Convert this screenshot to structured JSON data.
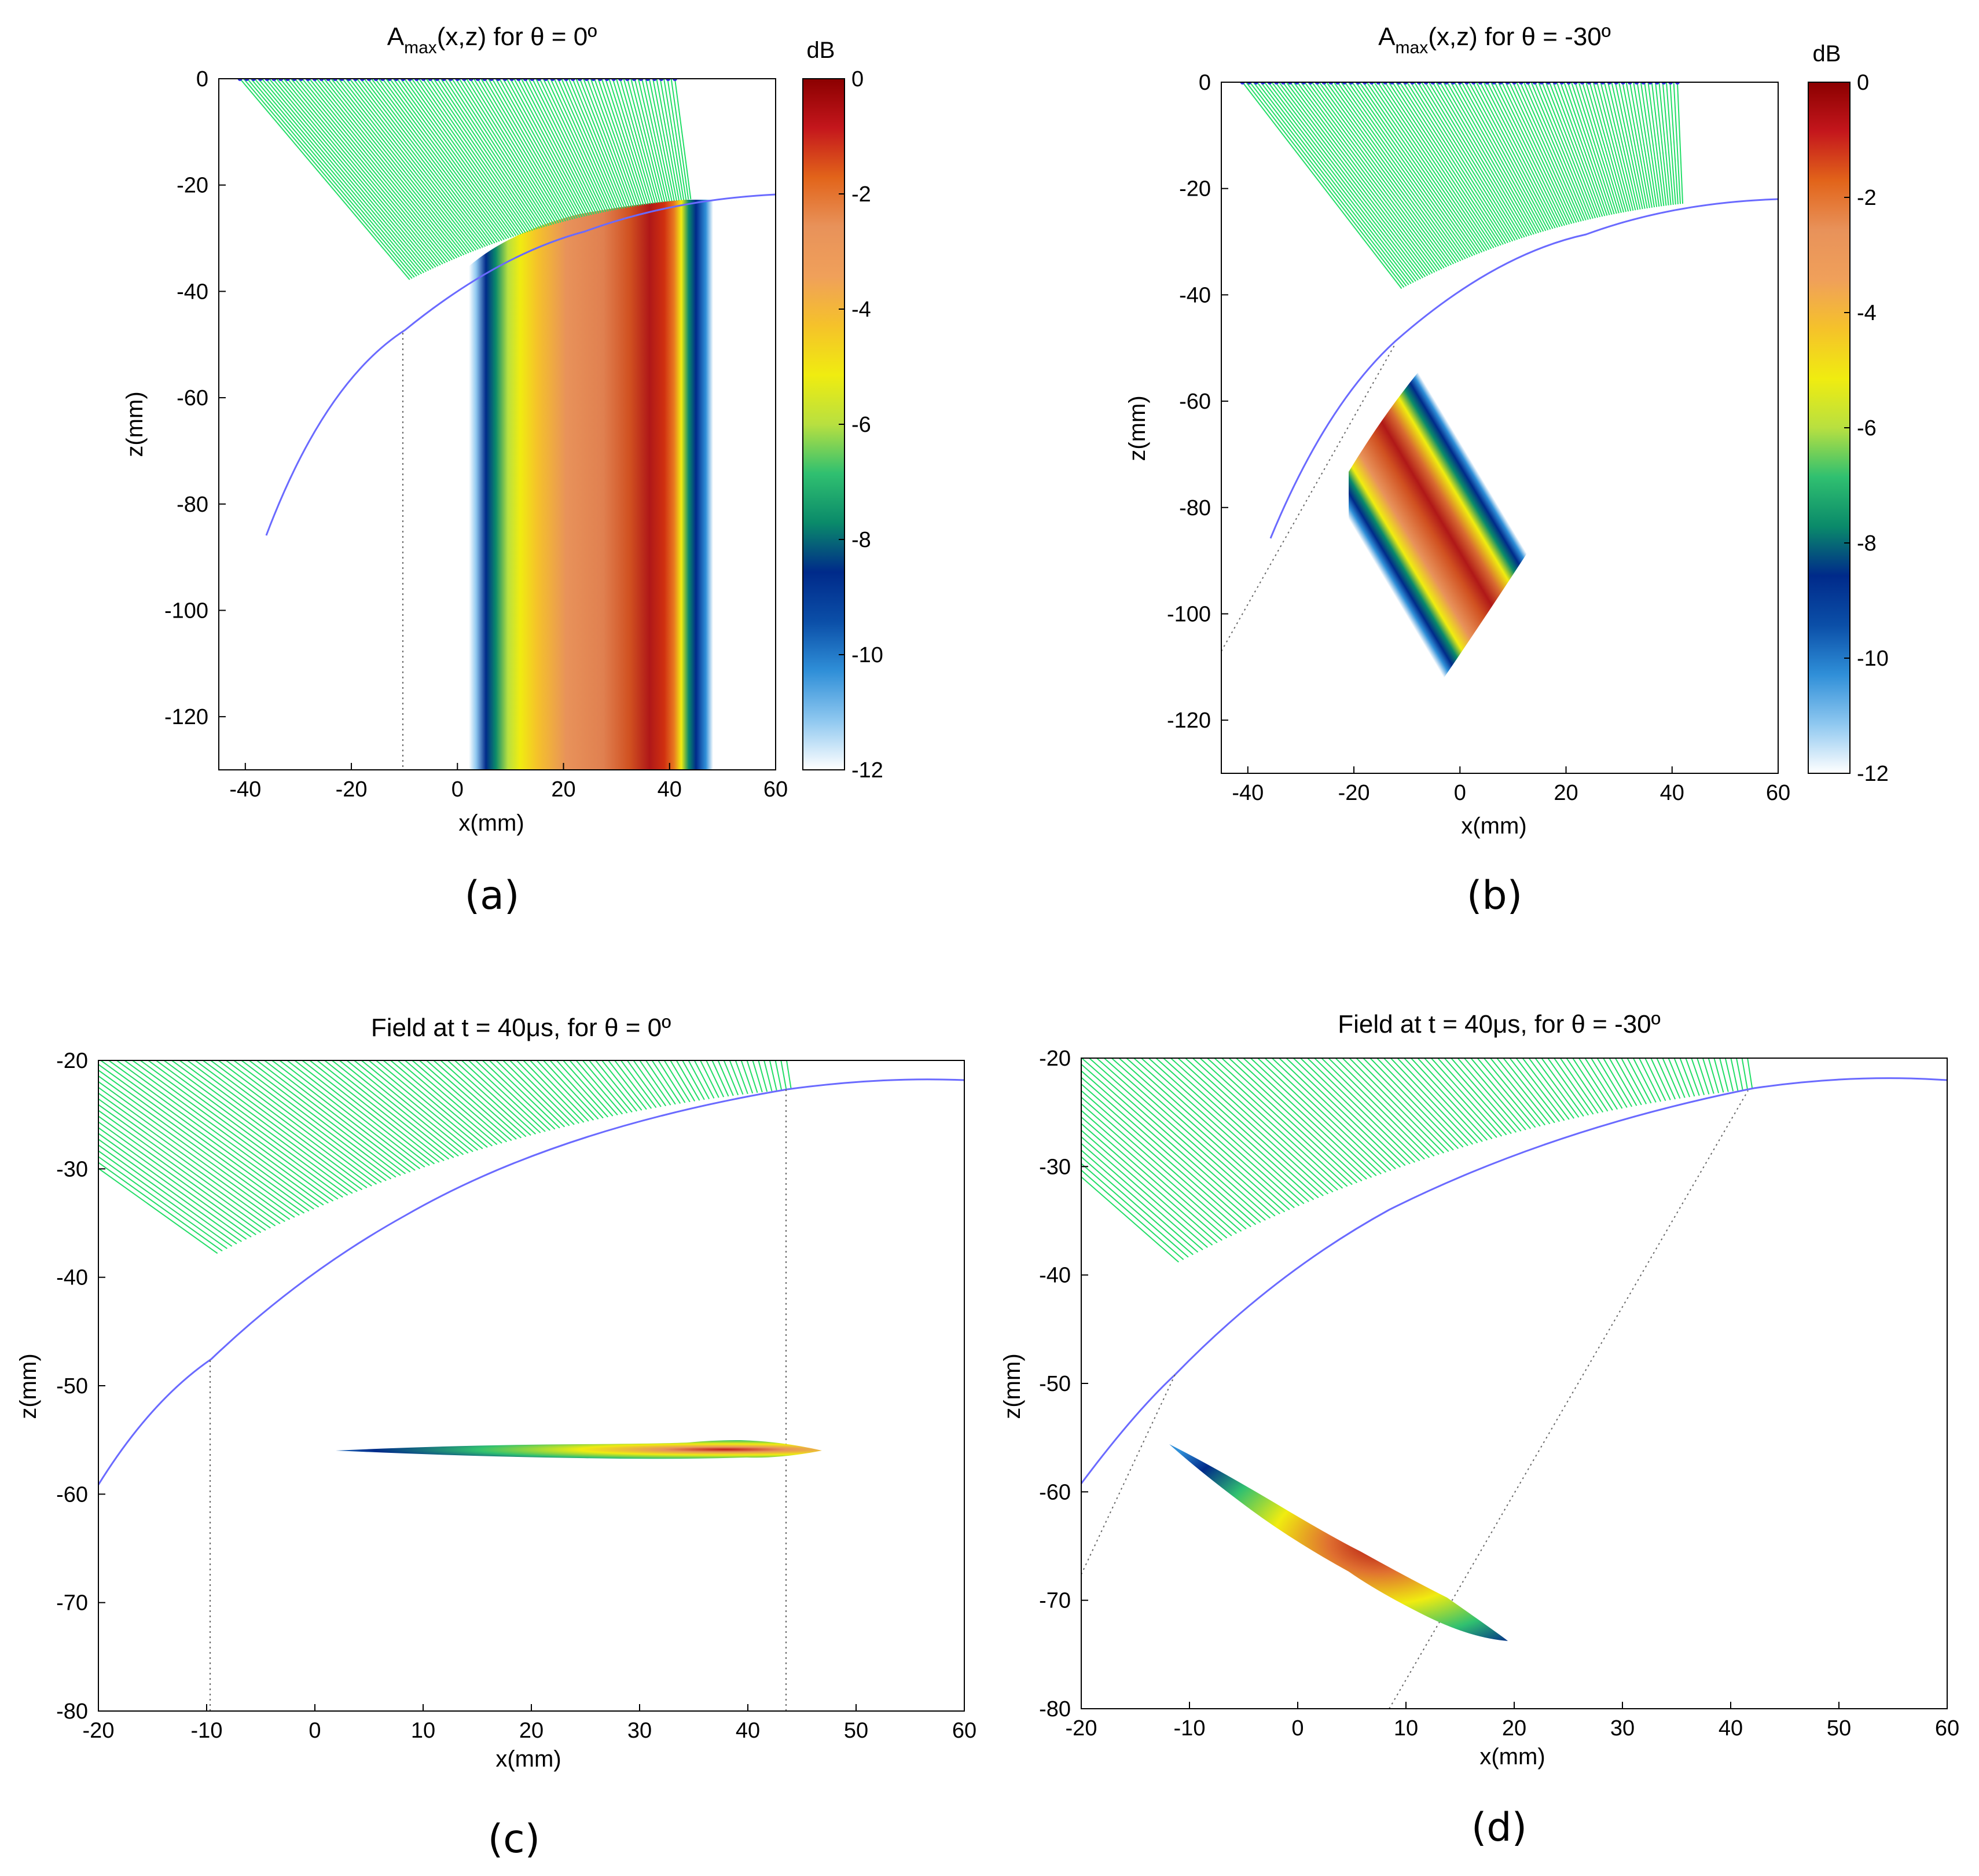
{
  "figure": {
    "colors": {
      "ray": "#22dd66",
      "surface": "#6a6aff",
      "elements": "#3030e0"
    },
    "colorbar_stops": [
      "#8b0000",
      "#c4161c",
      "#e2641a",
      "#e8925a",
      "#f0a05a",
      "#f5c22a",
      "#f0ec10",
      "#b8e040",
      "#30c070",
      "#0a8a6a",
      "#002a8a",
      "#0b4fa8",
      "#2f8fd8",
      "#8fc8f0",
      "#ffffff"
    ]
  },
  "chart_data": [
    {
      "id": "a",
      "type": "heatmap",
      "title_main": "A",
      "title_sub": "max",
      "title_rest": "(x,z) for θ = 0º",
      "xlabel": "x(mm)",
      "ylabel": "z(mm)",
      "xlim": [
        -45,
        60
      ],
      "ylim": [
        -130,
        0
      ],
      "xticks": [
        "-40",
        "-20",
        "0",
        "20",
        "40",
        "60"
      ],
      "xtick_values": [
        -40,
        -20,
        0,
        20,
        40,
        60
      ],
      "yticks": [
        "0",
        "-20",
        "-40",
        "-60",
        "-80",
        "-100",
        "-120"
      ],
      "ytick_values": [
        0,
        -20,
        -40,
        -60,
        -80,
        -100,
        -120
      ],
      "colorbar": {
        "unit": "dB",
        "range": [
          -12,
          0
        ],
        "ticks": [
          "0",
          "-2",
          "-4",
          "-6",
          "-8",
          "-10",
          "-12"
        ],
        "tick_values": [
          0,
          -2,
          -4,
          -6,
          -8,
          -10,
          -12
        ]
      },
      "array_x": [
        -41,
        41
      ],
      "beam": "vertical",
      "beam_x_range": [
        3,
        49
      ],
      "caption": "(a)"
    },
    {
      "id": "b",
      "type": "heatmap",
      "title_main": "A",
      "title_sub": "max",
      "title_rest": "(x,z) for θ = -30º",
      "xlabel": "x(mm)",
      "ylabel": "z(mm)",
      "xlim": [
        -45,
        60
      ],
      "ylim": [
        -130,
        0
      ],
      "xticks": [
        "-40",
        "-20",
        "0",
        "20",
        "40",
        "60"
      ],
      "xtick_values": [
        -40,
        -20,
        0,
        20,
        40,
        60
      ],
      "yticks": [
        "0",
        "-20",
        "-40",
        "-60",
        "-80",
        "-100",
        "-120"
      ],
      "ytick_values": [
        0,
        -20,
        -40,
        -60,
        -80,
        -100,
        -120
      ],
      "colorbar": {
        "unit": "dB",
        "range": [
          -12,
          0
        ],
        "ticks": [
          "0",
          "-2",
          "-4",
          "-6",
          "-8",
          "-10",
          "-12"
        ],
        "tick_values": [
          0,
          -2,
          -4,
          -6,
          -8,
          -10,
          -12
        ]
      },
      "array_x": [
        -41,
        41
      ],
      "beam": "steered",
      "steer_deg": -30,
      "caption": "(b)"
    },
    {
      "id": "c",
      "type": "heatmap",
      "title_text": "Field at t = 40μs, for θ = 0º",
      "xlabel": "x(mm)",
      "ylabel": "z(mm)",
      "xlim": [
        -20,
        60
      ],
      "ylim": [
        -80,
        -20
      ],
      "xticks": [
        "-20",
        "-10",
        "0",
        "10",
        "20",
        "30",
        "40",
        "50",
        "60"
      ],
      "xtick_values": [
        -20,
        -10,
        0,
        10,
        20,
        30,
        40,
        50,
        60
      ],
      "yticks": [
        "-20",
        "-30",
        "-40",
        "-50",
        "-60",
        "-70",
        "-80"
      ],
      "ytick_values": [
        -20,
        -30,
        -40,
        -50,
        -60,
        -70,
        -80
      ],
      "pulse": {
        "x_range": [
          2,
          47
        ],
        "z": -56,
        "peak_x": 38
      },
      "caption": "(c)"
    },
    {
      "id": "d",
      "type": "heatmap",
      "title_text": "Field at t = 40μs, for θ = -30º",
      "xlabel": "x(mm)",
      "ylabel": "z(mm)",
      "xlim": [
        -20,
        60
      ],
      "ylim": [
        -80,
        -20
      ],
      "xticks": [
        "-20",
        "-10",
        "0",
        "10",
        "20",
        "30",
        "40",
        "50",
        "60"
      ],
      "xtick_values": [
        -20,
        -10,
        0,
        10,
        20,
        30,
        40,
        50,
        60
      ],
      "yticks": [
        "-20",
        "-30",
        "-40",
        "-50",
        "-60",
        "-70",
        "-80"
      ],
      "ytick_values": [
        -20,
        -30,
        -40,
        -50,
        -60,
        -70,
        -80
      ],
      "pulse": {
        "from": [
          -12,
          -56
        ],
        "to": [
          19,
          -73
        ],
        "peak": [
          8,
          -67
        ]
      },
      "caption": "(d)"
    }
  ]
}
